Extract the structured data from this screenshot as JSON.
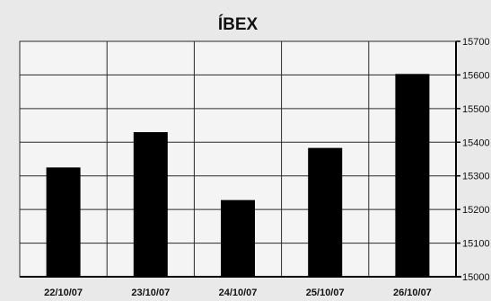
{
  "chart_data": {
    "type": "bar",
    "title": "ÍBEX",
    "xlabel": "",
    "ylabel": "",
    "categories": [
      "22/10/07",
      "23/10/07",
      "24/10/07",
      "25/10/07",
      "26/10/07"
    ],
    "values": [
      15325,
      15430,
      15228,
      15383,
      15603
    ],
    "ylim": [
      15000,
      15700
    ],
    "yticks": [
      15000,
      15100,
      15200,
      15300,
      15400,
      15500,
      15600,
      15700
    ],
    "ytick_labels": [
      "15000",
      "15100",
      "15200",
      "15300",
      "15400",
      "15500",
      "15600",
      "15700"
    ],
    "grid": true,
    "y_axis_side": "right",
    "colors": {
      "background": "#e9e9e9",
      "plot_background": "#f4f4f4",
      "bar": "#000000",
      "grid": "#2a2a2a",
      "text": "#111111"
    }
  }
}
